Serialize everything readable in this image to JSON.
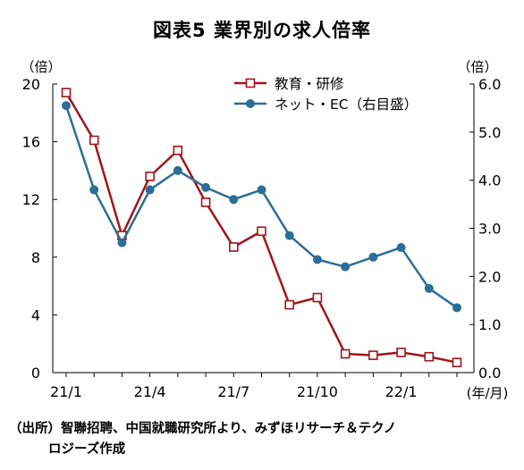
{
  "chart_data": {
    "type": "line",
    "title": "図表5 業界別の求人倍率",
    "left_axis_unit": "（倍）",
    "right_axis_unit": "（倍）",
    "x_unit": "(年/月)",
    "x": [
      "21/1",
      "21/2",
      "21/3",
      "21/4",
      "21/5",
      "21/6",
      "21/7",
      "21/8",
      "21/9",
      "21/10",
      "21/11",
      "21/12",
      "22/1",
      "22/2",
      "22/3"
    ],
    "x_tick_labels": [
      {
        "index": 0,
        "label": "21/1"
      },
      {
        "index": 3,
        "label": "21/4"
      },
      {
        "index": 6,
        "label": "21/7"
      },
      {
        "index": 9,
        "label": "21/10"
      },
      {
        "index": 12,
        "label": "22/1"
      }
    ],
    "left_ylim": [
      0,
      20
    ],
    "left_ticks": [
      "0",
      "4",
      "8",
      "12",
      "16",
      "20"
    ],
    "right_ylim": [
      0,
      6
    ],
    "right_ticks": [
      "0.0",
      "1.0",
      "2.0",
      "3.0",
      "4.0",
      "5.0",
      "6.0"
    ],
    "series": [
      {
        "name": "教育・研修",
        "axis": "left",
        "color": "#a0161b",
        "marker": "square-open",
        "values": [
          19.4,
          16.1,
          9.5,
          13.6,
          15.4,
          11.8,
          8.7,
          9.8,
          4.7,
          5.2,
          1.3,
          1.2,
          1.4,
          1.1,
          0.7
        ]
      },
      {
        "name": "ネット・EC（右目盛）",
        "axis": "right",
        "color": "#2e6d95",
        "marker": "circle-filled",
        "values": [
          5.55,
          3.8,
          2.7,
          3.8,
          4.2,
          3.85,
          3.6,
          3.8,
          2.85,
          2.35,
          2.2,
          2.4,
          2.6,
          1.75,
          1.35
        ]
      }
    ],
    "legend_position": "top-center",
    "grid": false
  },
  "source": {
    "line1": "（出所）智聯招聘、中国就職研究所より、みずほリサーチ＆テクノ",
    "line2": "ロジーズ作成"
  }
}
